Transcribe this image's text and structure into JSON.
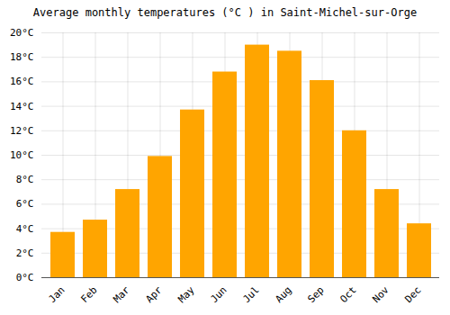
{
  "chart_data": {
    "type": "bar",
    "title": "Average monthly temperatures (°C ) in Saint-Michel-sur-Orge",
    "categories": [
      "Jan",
      "Feb",
      "Mar",
      "Apr",
      "May",
      "Jun",
      "Jul",
      "Aug",
      "Sep",
      "Oct",
      "Nov",
      "Dec"
    ],
    "values": [
      3.7,
      4.7,
      7.2,
      9.9,
      13.7,
      16.8,
      19.0,
      18.5,
      16.1,
      12.0,
      7.2,
      4.4
    ],
    "color": "#FFA500",
    "ylim": [
      0,
      20
    ],
    "yticks": [
      {
        "value": 0,
        "label": "0°C"
      },
      {
        "value": 2,
        "label": "2°C"
      },
      {
        "value": 4,
        "label": "4°C"
      },
      {
        "value": 6,
        "label": "6°C"
      },
      {
        "value": 8,
        "label": "8°C"
      },
      {
        "value": 10,
        "label": "10°C"
      },
      {
        "value": 12,
        "label": "12°C"
      },
      {
        "value": 14,
        "label": "14°C"
      },
      {
        "value": 16,
        "label": "16°C"
      },
      {
        "value": 18,
        "label": "18°C"
      },
      {
        "value": 20,
        "label": "20°C"
      }
    ],
    "grid": true
  }
}
